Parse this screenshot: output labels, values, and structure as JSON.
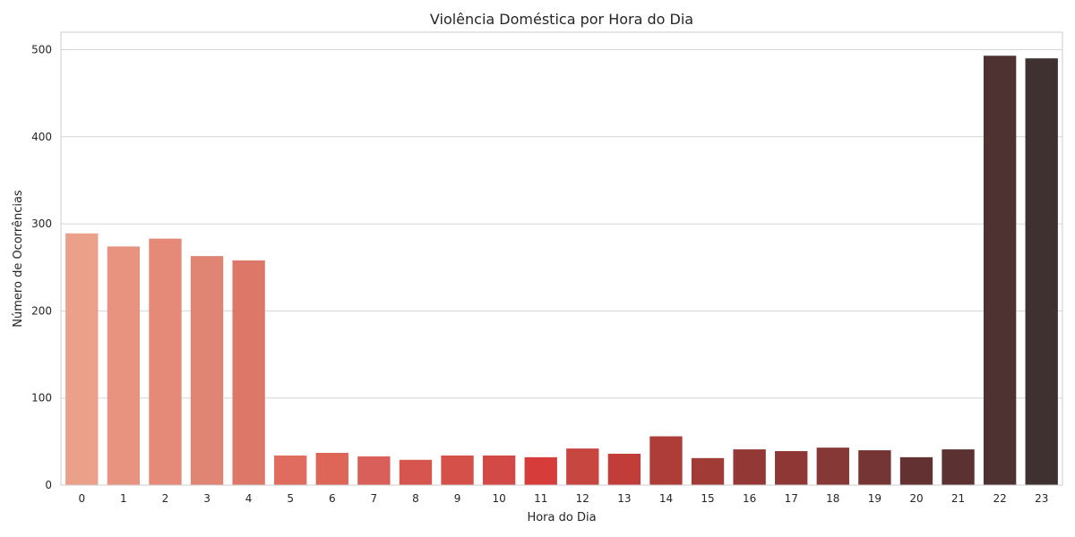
{
  "chart_data": {
    "type": "bar",
    "title": "Violência Doméstica por Hora do Dia",
    "xlabel": "Hora do Dia",
    "ylabel": "Número de Ocorrências",
    "categories": [
      "0",
      "1",
      "2",
      "3",
      "4",
      "5",
      "6",
      "7",
      "8",
      "9",
      "10",
      "11",
      "12",
      "13",
      "14",
      "15",
      "16",
      "17",
      "18",
      "19",
      "20",
      "21",
      "22",
      "23"
    ],
    "values": [
      289,
      274,
      283,
      263,
      258,
      34,
      37,
      33,
      29,
      34,
      34,
      32,
      42,
      36,
      56,
      31,
      41,
      39,
      43,
      40,
      32,
      41,
      493,
      490
    ],
    "colors": [
      "#eba08a",
      "#e89380",
      "#e58979",
      "#e08574",
      "#dd7868",
      "#e06b5f",
      "#de6659",
      "#d9605a",
      "#d6564f",
      "#d45049",
      "#d24945",
      "#d63d3a",
      "#c84640",
      "#c23d39",
      "#ae3d39",
      "#a03b36",
      "#933834",
      "#8e3734",
      "#853836",
      "#753535",
      "#643132",
      "#5c3131",
      "#4e3231",
      "#3e3130"
    ],
    "yticks": [
      0,
      100,
      200,
      300,
      400,
      500
    ],
    "ylim": [
      0,
      520
    ],
    "grid": true
  }
}
